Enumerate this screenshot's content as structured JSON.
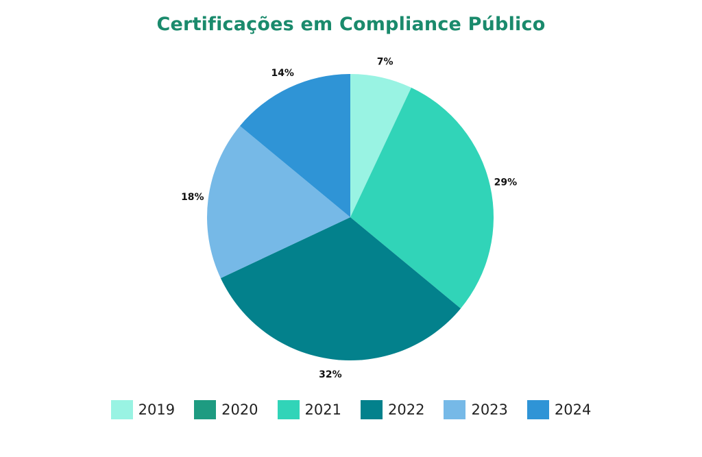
{
  "chart_data": {
    "type": "pie",
    "title": "Certificações em Compliance Público",
    "categories": [
      "2019",
      "2020",
      "2021",
      "2022",
      "2023",
      "2024"
    ],
    "values": [
      7,
      0,
      29,
      32,
      18,
      14
    ],
    "data_labels": [
      "7%",
      "",
      "29%",
      "32%",
      "18%",
      "14%"
    ],
    "colors": [
      "#99f3e3",
      "#1e9b81",
      "#31d4b8",
      "#03818c",
      "#76b9e7",
      "#2f94d6"
    ],
    "legend_position": "bottom"
  }
}
